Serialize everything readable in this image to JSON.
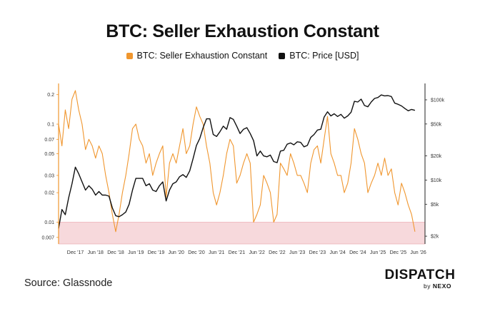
{
  "header": {
    "title": "BTC: Seller Exhaustion Constant"
  },
  "footer": {
    "source": "Source: Glassnode",
    "brand_name": "DISPATCH",
    "brand_by": "by",
    "brand_company": "NEXO"
  },
  "colors": {
    "sec": "#f0962e",
    "price": "#111111",
    "zone": "#f7d9dc",
    "axis": "#f0962e"
  },
  "chart_data": {
    "type": "line",
    "title": "BTC: Seller Exhaustion Constant",
    "legend_placement": "top-center",
    "grid": false,
    "x_ticks": [
      "Dec '17",
      "Jun '18",
      "Dec '18",
      "Jun '19",
      "Dec '19",
      "Jun '20",
      "Dec '20",
      "Jun '21",
      "Dec '21",
      "Jun '22",
      "Dec '22",
      "Jun '23",
      "Dec '23",
      "Jun '24",
      "Dec '24",
      "Jun '25",
      "Dec '25",
      "Jun '26"
    ],
    "y_left": {
      "scale": "log",
      "ticks": [
        "0.2",
        "0.1",
        "0.07",
        "0.05",
        "0.03",
        "0.02",
        "0.01",
        "0.007"
      ],
      "range": [
        0.006,
        0.26
      ]
    },
    "y_right": {
      "scale": "log",
      "ticks": [
        "$100k",
        "$50k",
        "$20k",
        "$10k",
        "$5k",
        "$2k"
      ],
      "range": [
        1600,
        160000
      ]
    },
    "shaded_zone": {
      "axis": "left",
      "from": 0.006,
      "to": 0.01
    },
    "series": [
      {
        "name": "BTC: Seller Exhaustion Constant",
        "axis": "left",
        "x": [
          "2017-07",
          "2017-08",
          "2017-09",
          "2017-10",
          "2017-11",
          "2017-12",
          "2018-01",
          "2018-02",
          "2018-03",
          "2018-04",
          "2018-05",
          "2018-06",
          "2018-07",
          "2018-08",
          "2018-09",
          "2018-10",
          "2018-11",
          "2018-12",
          "2019-01",
          "2019-02",
          "2019-03",
          "2019-04",
          "2019-05",
          "2019-06",
          "2019-07",
          "2019-08",
          "2019-09",
          "2019-10",
          "2019-11",
          "2019-12",
          "2020-01",
          "2020-02",
          "2020-03",
          "2020-04",
          "2020-05",
          "2020-06",
          "2020-07",
          "2020-08",
          "2020-09",
          "2020-10",
          "2020-11",
          "2020-12",
          "2021-01",
          "2021-02",
          "2021-03",
          "2021-04",
          "2021-05",
          "2021-06",
          "2021-07",
          "2021-08",
          "2021-09",
          "2021-10",
          "2021-11",
          "2021-12",
          "2022-01",
          "2022-02",
          "2022-03",
          "2022-04",
          "2022-05",
          "2022-06",
          "2022-07",
          "2022-08",
          "2022-09",
          "2022-10",
          "2022-11",
          "2022-12",
          "2023-01",
          "2023-02",
          "2023-03",
          "2023-04",
          "2023-05",
          "2023-06",
          "2023-07",
          "2023-08",
          "2023-09",
          "2023-10",
          "2023-11",
          "2023-12",
          "2024-01",
          "2024-02",
          "2024-03",
          "2024-04",
          "2024-05",
          "2024-06",
          "2024-07",
          "2024-08",
          "2024-09",
          "2024-10",
          "2024-11",
          "2024-12",
          "2025-01",
          "2025-02",
          "2025-03",
          "2025-04",
          "2025-05",
          "2025-06",
          "2025-07",
          "2025-08",
          "2025-09",
          "2025-10",
          "2025-11",
          "2025-12",
          "2026-01",
          "2026-02",
          "2026-03",
          "2026-04",
          "2026-05"
        ],
        "values": [
          0.1,
          0.06,
          0.14,
          0.09,
          0.18,
          0.22,
          0.14,
          0.1,
          0.055,
          0.07,
          0.06,
          0.045,
          0.06,
          0.05,
          0.03,
          0.02,
          0.012,
          0.008,
          0.012,
          0.02,
          0.03,
          0.05,
          0.09,
          0.1,
          0.07,
          0.06,
          0.04,
          0.05,
          0.03,
          0.04,
          0.05,
          0.06,
          0.018,
          0.04,
          0.05,
          0.04,
          0.06,
          0.09,
          0.05,
          0.06,
          0.1,
          0.15,
          0.12,
          0.1,
          0.06,
          0.04,
          0.02,
          0.015,
          0.02,
          0.03,
          0.05,
          0.07,
          0.06,
          0.025,
          0.03,
          0.04,
          0.05,
          0.04,
          0.01,
          0.012,
          0.015,
          0.03,
          0.025,
          0.02,
          0.01,
          0.012,
          0.04,
          0.035,
          0.03,
          0.05,
          0.04,
          0.03,
          0.03,
          0.025,
          0.02,
          0.04,
          0.055,
          0.06,
          0.04,
          0.07,
          0.12,
          0.05,
          0.04,
          0.03,
          0.03,
          0.02,
          0.025,
          0.04,
          0.09,
          0.07,
          0.05,
          0.04,
          0.02,
          0.025,
          0.03,
          0.04,
          0.03,
          0.045,
          0.03,
          0.035,
          0.02,
          0.015,
          0.025,
          0.02,
          0.015,
          0.012,
          0.008
        ]
      },
      {
        "name": "BTC: Price [USD]",
        "axis": "right",
        "x": [
          "2017-07",
          "2017-08",
          "2017-09",
          "2017-10",
          "2017-11",
          "2017-12",
          "2018-01",
          "2018-02",
          "2018-03",
          "2018-04",
          "2018-05",
          "2018-06",
          "2018-07",
          "2018-08",
          "2018-09",
          "2018-10",
          "2018-11",
          "2018-12",
          "2019-01",
          "2019-02",
          "2019-03",
          "2019-04",
          "2019-05",
          "2019-06",
          "2019-07",
          "2019-08",
          "2019-09",
          "2019-10",
          "2019-11",
          "2019-12",
          "2020-01",
          "2020-02",
          "2020-03",
          "2020-04",
          "2020-05",
          "2020-06",
          "2020-07",
          "2020-08",
          "2020-09",
          "2020-10",
          "2020-11",
          "2020-12",
          "2021-01",
          "2021-02",
          "2021-03",
          "2021-04",
          "2021-05",
          "2021-06",
          "2021-07",
          "2021-08",
          "2021-09",
          "2021-10",
          "2021-11",
          "2021-12",
          "2022-01",
          "2022-02",
          "2022-03",
          "2022-04",
          "2022-05",
          "2022-06",
          "2022-07",
          "2022-08",
          "2022-09",
          "2022-10",
          "2022-11",
          "2022-12",
          "2023-01",
          "2023-02",
          "2023-03",
          "2023-04",
          "2023-05",
          "2023-06",
          "2023-07",
          "2023-08",
          "2023-09",
          "2023-10",
          "2023-11",
          "2023-12",
          "2024-01",
          "2024-02",
          "2024-03",
          "2024-04",
          "2024-05",
          "2024-06",
          "2024-07",
          "2024-08",
          "2024-09",
          "2024-10",
          "2024-11",
          "2024-12",
          "2025-01",
          "2025-02",
          "2025-03",
          "2025-04",
          "2025-05",
          "2025-06",
          "2025-07",
          "2025-08",
          "2025-09",
          "2025-10",
          "2025-11",
          "2025-12",
          "2026-01",
          "2026-02",
          "2026-03",
          "2026-04",
          "2026-05"
        ],
        "values": [
          2500,
          4300,
          3700,
          6000,
          9000,
          14500,
          12000,
          9500,
          7500,
          8500,
          7700,
          6500,
          7200,
          6500,
          6500,
          6300,
          4500,
          3600,
          3500,
          3700,
          4000,
          5000,
          7500,
          10500,
          10500,
          10500,
          8500,
          9000,
          7500,
          7200,
          8500,
          9500,
          5500,
          7500,
          9000,
          9500,
          11000,
          11700,
          10800,
          13000,
          18500,
          27000,
          33000,
          45000,
          58000,
          58000,
          37000,
          35000,
          40000,
          47000,
          43000,
          60000,
          57000,
          47000,
          38000,
          43000,
          45000,
          38000,
          31000,
          20000,
          23000,
          20000,
          19500,
          20500,
          17000,
          16500,
          23000,
          23500,
          28000,
          29000,
          27500,
          30000,
          29500,
          26000,
          27000,
          34000,
          37000,
          42000,
          43000,
          61000,
          71000,
          63000,
          67000,
          62000,
          66000,
          59000,
          63000,
          70000,
          96000,
          94000,
          102000,
          85000,
          82000,
          94000,
          104000,
          107000,
          115000,
          112000,
          113000,
          110000,
          91000,
          88000,
          84000,
          78000,
          73000,
          76000,
          74000
        ]
      }
    ]
  }
}
